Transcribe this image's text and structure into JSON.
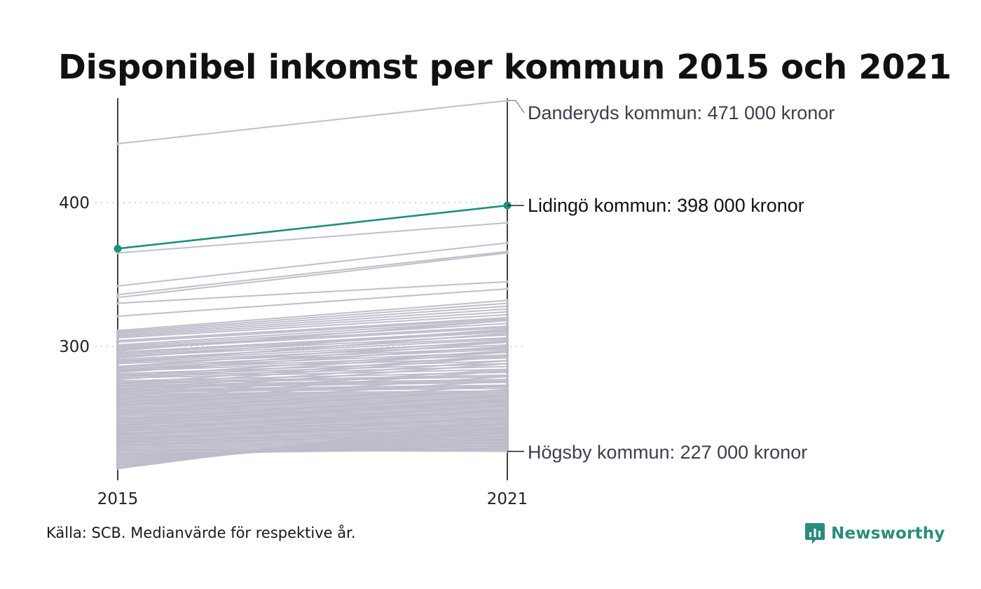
{
  "chart_data": {
    "type": "line",
    "title": "Disponibel inkomst per kommun 2015 och 2021",
    "x": [
      "2015",
      "2021"
    ],
    "ylim": [
      210,
      475
    ],
    "yticks": [
      "300",
      "400"
    ],
    "grid": "horizontal dotted at 300 and 400",
    "unit": "tusen kronor",
    "highlight": {
      "name": "Lidingö kommun",
      "values": [
        368,
        398
      ],
      "color": "#1f8f7f",
      "label": "Lidingö kommun: 398 000 kronor"
    },
    "annotations": [
      {
        "name": "Danderyds kommun",
        "values": [
          441,
          471
        ],
        "label": "Danderyds kommun: 471 000 kronor"
      },
      {
        "name": "Högsby kommun",
        "values": [
          228,
          227
        ],
        "label": "Högsby kommun: 227 000 kronor"
      }
    ],
    "background_series_color": "#bcbcc9",
    "background_series": [
      [
        441,
        471
      ],
      [
        365,
        386
      ],
      [
        342,
        372
      ],
      [
        336,
        366
      ],
      [
        334,
        365
      ],
      [
        330,
        345
      ],
      [
        321,
        340
      ],
      [
        311,
        332
      ],
      [
        310,
        330
      ],
      [
        309,
        328
      ],
      [
        308,
        326
      ],
      [
        307,
        324
      ],
      [
        306,
        322
      ],
      [
        304,
        320
      ],
      [
        303,
        319
      ],
      [
        301,
        318
      ],
      [
        300,
        316
      ],
      [
        299,
        314
      ],
      [
        298,
        313
      ],
      [
        296,
        311
      ],
      [
        295,
        310
      ],
      [
        294,
        308
      ],
      [
        293,
        306
      ],
      [
        291,
        305
      ],
      [
        290,
        303
      ],
      [
        289,
        301
      ],
      [
        288,
        299
      ],
      [
        286,
        298
      ],
      [
        285,
        296
      ],
      [
        284,
        294
      ],
      [
        283,
        292
      ],
      [
        281,
        290
      ],
      [
        280,
        288
      ],
      [
        279,
        286
      ],
      [
        278,
        284
      ],
      [
        276,
        282
      ],
      [
        275,
        280
      ],
      [
        274,
        279
      ],
      [
        273,
        277
      ],
      [
        272,
        276
      ],
      [
        271,
        275
      ],
      [
        270,
        273
      ],
      [
        269,
        272
      ],
      [
        268,
        271
      ],
      [
        267,
        269
      ],
      [
        266,
        268
      ],
      [
        265,
        267
      ],
      [
        264,
        266
      ],
      [
        263,
        265
      ],
      [
        262,
        264
      ],
      [
        261,
        263
      ],
      [
        260,
        262
      ],
      [
        259,
        261
      ],
      [
        258,
        260
      ],
      [
        257,
        259
      ],
      [
        256,
        258
      ],
      [
        255,
        257
      ],
      [
        254,
        256
      ],
      [
        253,
        255
      ],
      [
        252,
        254
      ],
      [
        251,
        253
      ],
      [
        250,
        252
      ],
      [
        249,
        251
      ],
      [
        248,
        250
      ],
      [
        247,
        249
      ],
      [
        246,
        248
      ],
      [
        245,
        247
      ],
      [
        244,
        246
      ],
      [
        243,
        245
      ],
      [
        242,
        244
      ],
      [
        241,
        243
      ],
      [
        240,
        242
      ],
      [
        239,
        241
      ],
      [
        238,
        240
      ],
      [
        237,
        239
      ],
      [
        236,
        238
      ],
      [
        235,
        237
      ],
      [
        234,
        236
      ],
      [
        233,
        235
      ],
      [
        232,
        234
      ],
      [
        231,
        233
      ],
      [
        230,
        232
      ],
      [
        229,
        231
      ],
      [
        228,
        230
      ],
      [
        227,
        229
      ],
      [
        226,
        228
      ],
      [
        225,
        229
      ],
      [
        224,
        231
      ],
      [
        223,
        233
      ],
      [
        222,
        235
      ],
      [
        221,
        236
      ],
      [
        220,
        238
      ],
      [
        219,
        240
      ],
      [
        218,
        242
      ],
      [
        217,
        244
      ],
      [
        216,
        247
      ],
      [
        215,
        250
      ],
      [
        228,
        227
      ],
      [
        247,
        263
      ],
      [
        253,
        270
      ],
      [
        259,
        276
      ],
      [
        263,
        283
      ],
      [
        268,
        288
      ],
      [
        272,
        293
      ],
      [
        277,
        296
      ],
      [
        282,
        300
      ],
      [
        286,
        304
      ],
      [
        289,
        309
      ],
      [
        292,
        312
      ],
      [
        297,
        318
      ],
      [
        243,
        255
      ],
      [
        239,
        250
      ],
      [
        236,
        246
      ],
      [
        233,
        243
      ],
      [
        231,
        241
      ],
      [
        234,
        251
      ],
      [
        238,
        256
      ],
      [
        241,
        259
      ],
      [
        245,
        262
      ],
      [
        249,
        266
      ],
      [
        255,
        273
      ],
      [
        261,
        279
      ],
      [
        266,
        284
      ],
      [
        270,
        290
      ],
      [
        274,
        294
      ],
      [
        279,
        297
      ],
      [
        283,
        303
      ]
    ]
  },
  "footer": {
    "source": "Källa: SCB. Medianvärde för respektive år.",
    "brand": "Newsworthy"
  },
  "colors": {
    "highlight": "#1f8f7f",
    "background_lines": "#bcbcc9",
    "brand": "#2a8c7d"
  }
}
